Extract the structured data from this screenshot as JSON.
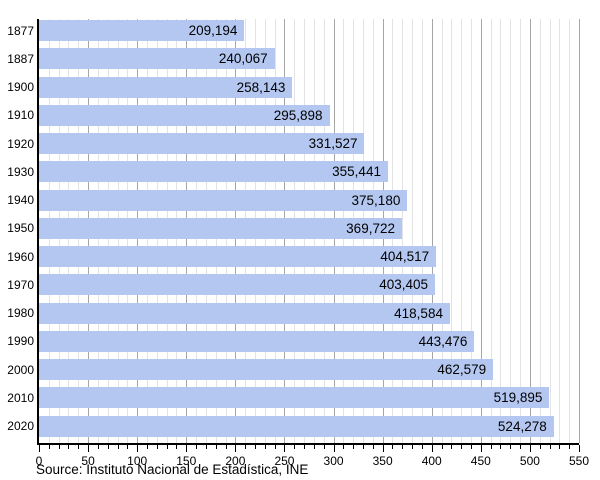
{
  "chart_data": {
    "type": "bar",
    "orientation": "horizontal",
    "title": "",
    "xlabel": "",
    "ylabel": "",
    "categories": [
      "1877",
      "1887",
      "1900",
      "1910",
      "1920",
      "1930",
      "1940",
      "1950",
      "1960",
      "1970",
      "1980",
      "1990",
      "2000",
      "2010",
      "2020"
    ],
    "values": [
      209194,
      240067,
      258143,
      295898,
      331527,
      355441,
      375180,
      369722,
      404517,
      403405,
      418584,
      443476,
      462579,
      519895,
      524278
    ],
    "value_labels": [
      "209,194",
      "240,067",
      "258,143",
      "295,898",
      "331,527",
      "355,441",
      "375,180",
      "369,722",
      "404,517",
      "403,405",
      "418,584",
      "443,476",
      "462,579",
      "519,895",
      "524,278"
    ],
    "xlim": [
      0,
      550
    ],
    "x_axis_scale_divisor": 1000,
    "x_tick_labels": [
      "0",
      "50",
      "100",
      "150",
      "200",
      "250",
      "300",
      "350",
      "400",
      "450",
      "500",
      "550"
    ],
    "x_major_tick_step": 50,
    "x_minor_tick_step": 10,
    "grid": "vertical minor every 10, major every 50",
    "legend": "none"
  },
  "source_note": "Source: Instituto Nacional de Estadística, INE",
  "colors": {
    "bar_fill": "#b4c7f1",
    "grid_minor": "#e3e3e6",
    "grid_major": "#a6a6a6",
    "axis": "#000000",
    "text": "#000000",
    "background": "#ffffff"
  }
}
